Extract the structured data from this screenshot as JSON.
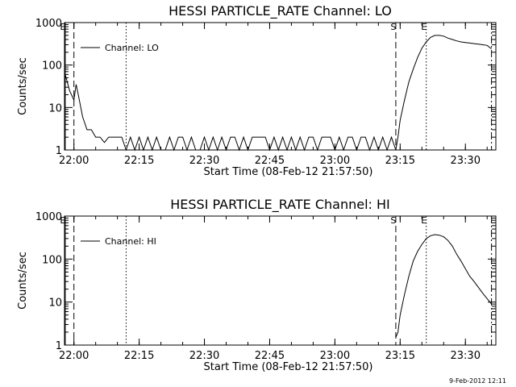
{
  "footer": "9-Feb-2012 12:11",
  "chart_data": [
    {
      "type": "line",
      "title": "HESSI PARTICLE_RATE Channel: LO",
      "xlabel": "Start Time (08-Feb-12 21:57:50)",
      "ylabel": "Counts/sec",
      "ylog": true,
      "ylim": [
        1,
        1000
      ],
      "y_ticks": [
        "1",
        "10",
        "100",
        "1000"
      ],
      "x_ticks": [
        "22:00",
        "22:15",
        "22:30",
        "22:45",
        "23:00",
        "23:15",
        "23:30"
      ],
      "legend": "Channel: LO",
      "legend_position": "top-left",
      "markers": {
        "S": "23:14",
        "E": "23:21"
      },
      "vertical_lines": [
        {
          "time": "21:58",
          "style": "solid",
          "label": "E"
        },
        {
          "time": "22:00",
          "style": "dashed"
        },
        {
          "time": "22:12",
          "style": "dotted"
        },
        {
          "time": "23:14",
          "style": "dashed",
          "label": "S"
        },
        {
          "time": "23:21",
          "style": "dotted",
          "label": "E"
        },
        {
          "time": "23:36",
          "style": "dashdot"
        }
      ],
      "series": [
        {
          "name": "Channel: LO",
          "points": [
            [
              "21:58",
              60
            ],
            [
              "21:59",
              25
            ],
            [
              "22:00",
              15
            ],
            [
              "22:00:30",
              35
            ],
            [
              "22:01",
              20
            ],
            [
              "22:02",
              6
            ],
            [
              "22:03",
              3
            ],
            [
              "22:04",
              3
            ],
            [
              "22:05",
              2
            ],
            [
              "22:06",
              2
            ],
            [
              "22:07",
              1.5
            ],
            [
              "22:08",
              2
            ],
            [
              "22:09",
              2
            ],
            [
              "22:10",
              2
            ],
            [
              "22:11",
              2
            ],
            [
              "22:12",
              1
            ],
            [
              "22:13",
              2
            ],
            [
              "22:14",
              1
            ],
            [
              "22:15",
              2
            ],
            [
              "22:16",
              1
            ],
            [
              "22:17",
              2
            ],
            [
              "22:18",
              1
            ],
            [
              "22:19",
              2
            ],
            [
              "22:20",
              1
            ],
            [
              "22:21",
              1
            ],
            [
              "22:22",
              2
            ],
            [
              "22:23",
              1
            ],
            [
              "22:24",
              2
            ],
            [
              "22:25",
              2
            ],
            [
              "22:26",
              1
            ],
            [
              "22:27",
              2
            ],
            [
              "22:28",
              1
            ],
            [
              "22:29",
              1
            ],
            [
              "22:30",
              2
            ],
            [
              "22:31",
              1
            ],
            [
              "22:32",
              2
            ],
            [
              "22:33",
              1
            ],
            [
              "22:34",
              2
            ],
            [
              "22:35",
              1
            ],
            [
              "22:36",
              2
            ],
            [
              "22:37",
              2
            ],
            [
              "22:38",
              1
            ],
            [
              "22:39",
              2
            ],
            [
              "22:40",
              1
            ],
            [
              "22:41",
              2
            ],
            [
              "22:42",
              2
            ],
            [
              "22:43",
              2
            ],
            [
              "22:44",
              2
            ],
            [
              "22:45",
              1
            ],
            [
              "22:46",
              2
            ],
            [
              "22:47",
              1
            ],
            [
              "22:48",
              2
            ],
            [
              "22:49",
              1
            ],
            [
              "22:50",
              2
            ],
            [
              "22:51",
              1
            ],
            [
              "22:52",
              2
            ],
            [
              "22:53",
              1
            ],
            [
              "22:54",
              2
            ],
            [
              "22:55",
              2
            ],
            [
              "22:56",
              1
            ],
            [
              "22:57",
              2
            ],
            [
              "22:58",
              2
            ],
            [
              "22:59",
              2
            ],
            [
              "23:00",
              1
            ],
            [
              "23:01",
              2
            ],
            [
              "23:02",
              1
            ],
            [
              "23:03",
              2
            ],
            [
              "23:04",
              2
            ],
            [
              "23:05",
              1
            ],
            [
              "23:06",
              2
            ],
            [
              "23:07",
              2
            ],
            [
              "23:08",
              1
            ],
            [
              "23:09",
              2
            ],
            [
              "23:10",
              1
            ],
            [
              "23:11",
              2
            ],
            [
              "23:12",
              1
            ],
            [
              "23:13",
              2
            ],
            [
              "23:14",
              1
            ],
            [
              "23:14:30",
              2
            ],
            [
              "23:15",
              5
            ],
            [
              "23:16",
              15
            ],
            [
              "23:17",
              40
            ],
            [
              "23:18",
              80
            ],
            [
              "23:19",
              150
            ],
            [
              "23:20",
              250
            ],
            [
              "23:21",
              350
            ],
            [
              "23:22",
              450
            ],
            [
              "23:23",
              500
            ],
            [
              "23:24",
              500
            ],
            [
              "23:25",
              480
            ],
            [
              "23:26",
              430
            ],
            [
              "23:27",
              400
            ],
            [
              "23:28",
              370
            ],
            [
              "23:29",
              350
            ],
            [
              "23:30",
              340
            ],
            [
              "23:31",
              330
            ],
            [
              "23:32",
              320
            ],
            [
              "23:33",
              310
            ],
            [
              "23:34",
              300
            ],
            [
              "23:35",
              290
            ],
            [
              "23:36",
              240
            ]
          ]
        }
      ]
    },
    {
      "type": "line",
      "title": "HESSI PARTICLE_RATE Channel: HI",
      "xlabel": "Start Time (08-Feb-12 21:57:50)",
      "ylabel": "Counts/sec",
      "ylog": true,
      "ylim": [
        1,
        1000
      ],
      "y_ticks": [
        "1",
        "10",
        "100",
        "1000"
      ],
      "x_ticks": [
        "22:00",
        "22:15",
        "22:30",
        "22:45",
        "23:00",
        "23:15",
        "23:30"
      ],
      "legend": "Channel: HI",
      "legend_position": "top-left",
      "markers": {
        "S": "23:14",
        "E": "23:21"
      },
      "vertical_lines": [
        {
          "time": "21:58",
          "style": "solid",
          "label": "E"
        },
        {
          "time": "22:00",
          "style": "dashed"
        },
        {
          "time": "22:12",
          "style": "dotted"
        },
        {
          "time": "23:14",
          "style": "dashed",
          "label": "S"
        },
        {
          "time": "23:21",
          "style": "dotted",
          "label": "E"
        },
        {
          "time": "23:36",
          "style": "dashdot"
        }
      ],
      "series": [
        {
          "name": "Channel: HI",
          "points": [
            [
              "23:14",
              1.5
            ],
            [
              "23:14:30",
              2
            ],
            [
              "23:15",
              5
            ],
            [
              "23:16",
              15
            ],
            [
              "23:17",
              40
            ],
            [
              "23:18",
              90
            ],
            [
              "23:19",
              150
            ],
            [
              "23:20",
              220
            ],
            [
              "23:21",
              300
            ],
            [
              "23:22",
              350
            ],
            [
              "23:23",
              370
            ],
            [
              "23:24",
              360
            ],
            [
              "23:25",
              330
            ],
            [
              "23:26",
              270
            ],
            [
              "23:27",
              200
            ],
            [
              "23:28",
              130
            ],
            [
              "23:29",
              90
            ],
            [
              "23:30",
              60
            ],
            [
              "23:31",
              40
            ],
            [
              "23:32",
              30
            ],
            [
              "23:33",
              22
            ],
            [
              "23:34",
              16
            ],
            [
              "23:35",
              12
            ],
            [
              "23:36",
              9
            ]
          ]
        }
      ]
    }
  ]
}
